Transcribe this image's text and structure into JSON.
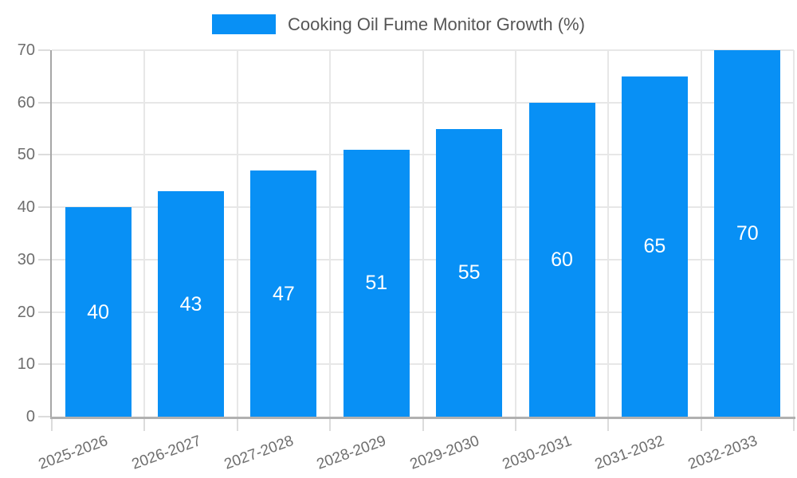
{
  "legend": {
    "label": "Cooking Oil Fume Monitor Growth (%)"
  },
  "chart_data": {
    "type": "bar",
    "title": "Cooking Oil Fume Monitor Growth (%)",
    "categories": [
      "2025-2026",
      "2026-2027",
      "2027-2028",
      "2028-2029",
      "2029-2030",
      "2030-2031",
      "2031-2032",
      "2032-2033"
    ],
    "series": [
      {
        "name": "Cooking Oil Fume Monitor Growth (%)",
        "values": [
          40,
          43,
          47,
          51,
          55,
          60,
          65,
          70
        ]
      }
    ],
    "value_labels_shown": true,
    "xlabel": "",
    "ylabel": "",
    "ylim": [
      0,
      70
    ],
    "yticks": [
      0,
      10,
      20,
      30,
      40,
      50,
      60,
      70
    ],
    "grid": true,
    "legend_position": "top-center",
    "x_label_rotation_deg": -20
  },
  "colors": {
    "bar": "#0890f5",
    "value_label": "#ffffff",
    "axis_label": "#6e6e6e",
    "legend_text": "#565656",
    "gridline": "#e7e7e7",
    "axis_line": "#a6a6a6",
    "tick": "#dcdcdc",
    "background": "#ffffff"
  }
}
